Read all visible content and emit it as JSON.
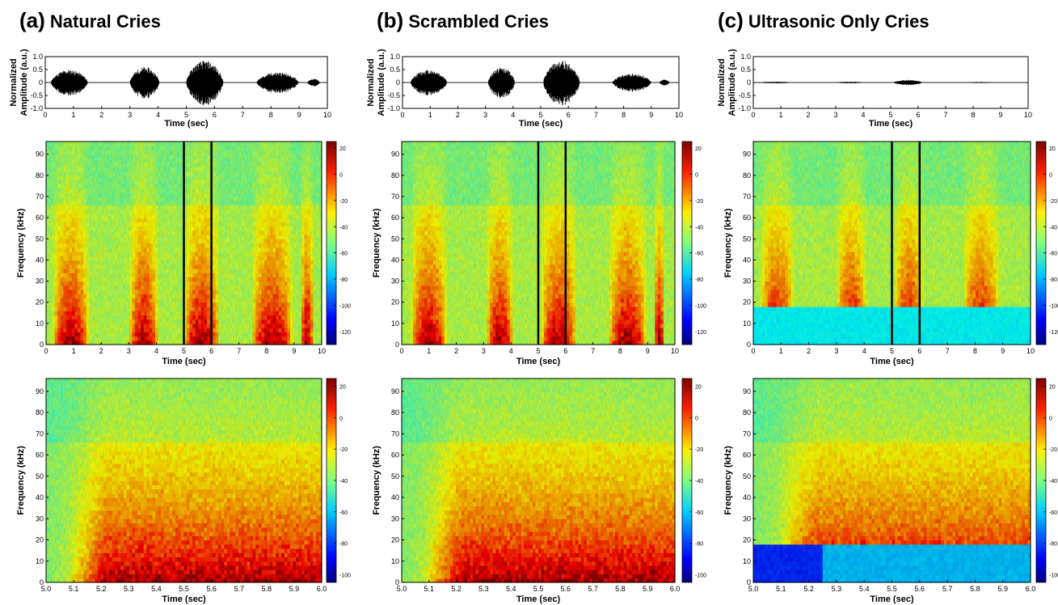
{
  "panels": [
    {
      "letter": "(a)",
      "title": "Natural Cries",
      "waveform_activity": [
        {
          "start": 0.2,
          "end": 1.7,
          "peak": 0.5
        },
        {
          "start": 3.0,
          "end": 4.2,
          "peak": 0.6
        },
        {
          "start": 5.0,
          "end": 6.5,
          "peak": 0.85
        },
        {
          "start": 7.5,
          "end": 9.2,
          "peak": 0.4
        },
        {
          "start": 9.3,
          "end": 9.8,
          "peak": 0.15
        }
      ],
      "colorbar_top_ticks": [
        "20",
        "0",
        "-20",
        "-40",
        "-60",
        "-80",
        "-100",
        "-120"
      ],
      "colorbar_bottom_ticks": [
        "20",
        "0",
        "-20",
        "-40",
        "-60",
        "-80",
        "-100"
      ]
    },
    {
      "letter": "(b)",
      "title": "Scrambled Cries",
      "waveform_activity": [
        {
          "start": 0.3,
          "end": 1.8,
          "peak": 0.5
        },
        {
          "start": 3.1,
          "end": 4.2,
          "peak": 0.6
        },
        {
          "start": 5.1,
          "end": 6.6,
          "peak": 0.85
        },
        {
          "start": 7.6,
          "end": 9.2,
          "peak": 0.35
        },
        {
          "start": 9.3,
          "end": 9.7,
          "peak": 0.12
        }
      ],
      "colorbar_top_ticks": [
        "20",
        "0",
        "-20",
        "-40",
        "-60",
        "-80",
        "-100",
        "-120"
      ],
      "colorbar_bottom_ticks": [
        "20",
        "0",
        "-20",
        "-40",
        "-60",
        "-80",
        "-100"
      ]
    },
    {
      "letter": "(c)",
      "title": "Ultrasonic Only Cries",
      "waveform_activity": [
        {
          "start": 0.2,
          "end": 1.6,
          "peak": 0.03
        },
        {
          "start": 3.0,
          "end": 4.2,
          "peak": 0.03
        },
        {
          "start": 5.1,
          "end": 6.3,
          "peak": 0.1
        },
        {
          "start": 7.6,
          "end": 9.1,
          "peak": 0.02
        }
      ],
      "colorbar_top_ticks": [
        "20",
        "0",
        "-20",
        "-40",
        "-60",
        "-80",
        "-100",
        "-120"
      ],
      "colorbar_bottom_ticks": [
        "20",
        "0",
        "-20",
        "-40",
        "-60",
        "-80",
        "-100"
      ]
    }
  ],
  "chart_data": [
    {
      "type": "line",
      "name_row": "waveform",
      "xlabel": "Time (sec)",
      "ylabel": "Normalized Amplitude (a.u.)",
      "xlim": [
        0,
        10
      ],
      "ylim": [
        -1.0,
        1.0
      ],
      "xticks": [
        "0",
        "1",
        "2",
        "3",
        "4",
        "5",
        "6",
        "7",
        "8",
        "9",
        "10"
      ],
      "yticks": [
        "1.0",
        "0.5",
        "0",
        "-0.5",
        "-1.0"
      ]
    },
    {
      "type": "heatmap",
      "name_row": "spectrogram-full",
      "xlabel": "Time (sec)",
      "ylabel": "Frequency (kHz)",
      "xlim": [
        0,
        10
      ],
      "ylim": [
        0,
        96
      ],
      "xticks": [
        "0",
        "1",
        "2",
        "3",
        "4",
        "5",
        "6",
        "7",
        "8",
        "9",
        "10"
      ],
      "yticks": [
        "0",
        "10",
        "20",
        "30",
        "40",
        "50",
        "60",
        "70",
        "80",
        "90"
      ],
      "markers_sec": [
        5.0,
        6.0
      ],
      "colorbar_range": [
        -130,
        25
      ]
    },
    {
      "type": "heatmap",
      "name_row": "spectrogram-zoom",
      "xlabel": "Time (sec)",
      "ylabel": "Frequency (kHz)",
      "xlim": [
        5.0,
        6.0
      ],
      "ylim": [
        0,
        96
      ],
      "xticks": [
        "5.0",
        "5.1",
        "5.2",
        "5.3",
        "5.4",
        "5.5",
        "5.6",
        "5.7",
        "5.8",
        "5.9",
        "6.0"
      ],
      "yticks": [
        "0",
        "10",
        "20",
        "30",
        "40",
        "50",
        "60",
        "70",
        "80",
        "90"
      ],
      "colorbar_range": [
        -105,
        25
      ]
    }
  ]
}
